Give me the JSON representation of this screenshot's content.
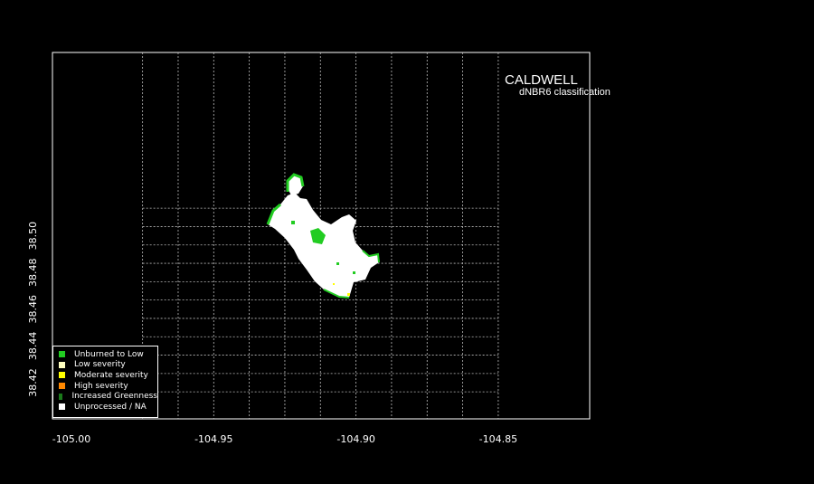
{
  "map": {
    "title": "CALDWELL",
    "subtitle": "dNBR6 classification",
    "xlim": [
      -105.0,
      -104.85
    ],
    "ylim": [
      38.41,
      38.51
    ],
    "x_ticks": [
      "-105.00",
      "-104.95",
      "-104.90",
      "-104.85"
    ],
    "x_tick_values": [
      -105.0,
      -104.95,
      -104.9,
      -104.85
    ],
    "y_ticks": [
      "38.42",
      "38.44",
      "38.46",
      "38.48",
      "38.50"
    ],
    "y_tick_values": [
      38.42,
      38.44,
      38.46,
      38.48,
      38.5
    ],
    "grid_color": "#bbbbbb",
    "colors": {
      "background": "#000000",
      "unburned": "#22cc22",
      "unprocessed": "#ffffff",
      "moderate": "#ffff00"
    }
  },
  "legend": {
    "placement": "bottom-left",
    "items": [
      {
        "label": "Unburned to Low",
        "color": "#22cc22"
      },
      {
        "label": "Low severity",
        "color": "#ffffc0"
      },
      {
        "label": "Moderate severity",
        "color": "#ffff00"
      },
      {
        "label": "High severity",
        "color": "#ff8800"
      },
      {
        "label": "Increased Greenness",
        "color": "#1a7a1a"
      },
      {
        "label": "Unprocessed / NA",
        "color": "#ffffff"
      }
    ]
  }
}
